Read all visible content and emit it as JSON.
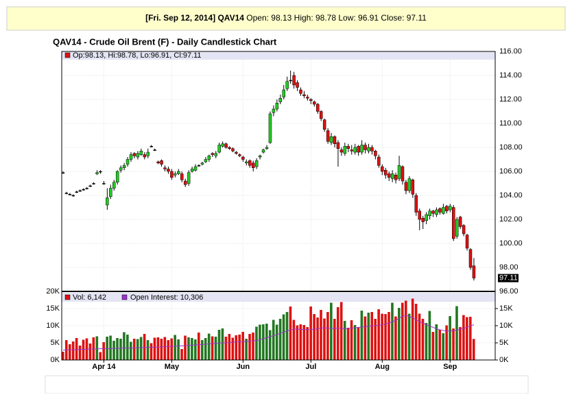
{
  "header": {
    "symbol_date": "[Fri. Sep 12, 2014] QAV14",
    "quote": "Open: 98.13 High: 98.78 Low: 96.91 Close: 97.11"
  },
  "chart_data": {
    "type": "candlestick",
    "title": "QAV14 - Crude Oil Brent (F) - Daily Candlestick Chart",
    "legend": "Op:98.13, Hi:98.78, Lo:96.91, Cl:97.11",
    "last_price_label": "97.11",
    "up_color": "#22cc22",
    "down_color": "#dd1111",
    "categories": [
      null,
      null,
      null,
      null,
      null,
      null,
      null,
      null,
      null,
      null,
      null,
      null,
      "Apr 14",
      null,
      null,
      null,
      null,
      null,
      null,
      null,
      null,
      null,
      null,
      null,
      null,
      null,
      null,
      null,
      null,
      null,
      null,
      null,
      "May",
      null,
      null,
      null,
      null,
      null,
      null,
      null,
      null,
      null,
      null,
      null,
      null,
      null,
      null,
      null,
      null,
      null,
      null,
      null,
      null,
      "Jun",
      null,
      null,
      null,
      null,
      null,
      null,
      null,
      null,
      null,
      null,
      null,
      null,
      null,
      null,
      null,
      null,
      null,
      null,
      null,
      "Jul",
      null,
      null,
      null,
      null,
      null,
      null,
      null,
      null,
      null,
      null,
      null,
      null,
      null,
      null,
      null,
      null,
      null,
      null,
      null,
      null,
      "Aug",
      null,
      null,
      null,
      null,
      null,
      null,
      null,
      null,
      null,
      null,
      null,
      null,
      null,
      null,
      null,
      null,
      null,
      null,
      null,
      "Sep",
      null,
      null,
      null,
      null,
      null,
      null,
      null
    ],
    "open": [
      105.9,
      104.2,
      104.1,
      104.0,
      104.3,
      104.4,
      104.5,
      104.6,
      104.8,
      105.0,
      105.8,
      106.0,
      105.0,
      103.2,
      103.9,
      104.6,
      105.1,
      106.1,
      106.3,
      106.6,
      107.0,
      107.5,
      107.2,
      107.4,
      107.4,
      107.3,
      108.1,
      107.8,
      106.8,
      106.9,
      106.3,
      106.2,
      106.0,
      105.7,
      105.8,
      105.8,
      105.2,
      105.0,
      106.0,
      106.1,
      106.5,
      106.6,
      106.8,
      107.0,
      107.5,
      107.3,
      107.6,
      108.1,
      108.3,
      108.0,
      107.9,
      107.6,
      107.4,
      107.2,
      106.7,
      106.9,
      106.7,
      106.4,
      107.2,
      107.6,
      107.9,
      108.4,
      110.9,
      111.2,
      111.8,
      112.2,
      112.9,
      113.6,
      114.0,
      113.4,
      112.8,
      112.4,
      112.2,
      112.0,
      111.8,
      111.6,
      111.0,
      110.3,
      109.4,
      108.4,
      108.9,
      108.4,
      107.8,
      107.5,
      108.1,
      107.8,
      107.6,
      108.1,
      107.6,
      108.2,
      107.7,
      108.0,
      107.7,
      107.2,
      106.4,
      106.1,
      105.8,
      105.4,
      105.7,
      105.4,
      106.4,
      105.1,
      104.4,
      105.3,
      104.0,
      102.7,
      102.1,
      101.9,
      102.3,
      102.7,
      102.4,
      102.9,
      102.5,
      103.1,
      102.8,
      103.0,
      100.6,
      102.2,
      101.5,
      100.7,
      99.5,
      98.13
    ],
    "high": [
      106.0,
      104.3,
      104.2,
      104.1,
      104.4,
      104.5,
      104.6,
      104.7,
      104.9,
      105.1,
      106.1,
      106.1,
      105.2,
      104.6,
      104.9,
      105.3,
      106.1,
      106.5,
      106.7,
      107.2,
      107.6,
      107.6,
      107.7,
      107.9,
      107.6,
      107.9,
      108.2,
      107.9,
      106.9,
      107.0,
      106.5,
      106.4,
      106.2,
      106.0,
      106.2,
      106.0,
      105.4,
      106.1,
      106.4,
      106.6,
      106.6,
      106.8,
      107.2,
      107.4,
      107.6,
      107.7,
      108.4,
      108.5,
      108.4,
      108.1,
      108.0,
      107.7,
      107.5,
      107.3,
      107.0,
      107.0,
      106.9,
      107.1,
      107.4,
      107.9,
      108.2,
      111.0,
      111.5,
      112.0,
      112.4,
      113.2,
      113.9,
      114.4,
      114.3,
      113.6,
      113.0,
      112.7,
      112.4,
      112.1,
      111.9,
      111.7,
      111.1,
      110.4,
      109.6,
      109.2,
      109.0,
      108.6,
      108.0,
      108.4,
      108.3,
      108.2,
      108.3,
      108.2,
      108.6,
      108.4,
      108.3,
      108.2,
      107.8,
      107.4,
      106.6,
      106.3,
      106.0,
      106.1,
      105.9,
      107.3,
      106.5,
      105.3,
      105.6,
      105.4,
      104.2,
      102.9,
      102.3,
      102.6,
      102.9,
      102.8,
      103.0,
      103.0,
      103.3,
      103.2,
      103.3,
      103.2,
      102.2,
      102.3,
      101.6,
      100.8,
      99.6,
      98.78
    ],
    "low": [
      105.8,
      104.1,
      104.0,
      103.9,
      104.2,
      104.3,
      104.4,
      104.5,
      104.7,
      104.9,
      105.7,
      105.8,
      104.9,
      102.8,
      103.7,
      104.4,
      104.9,
      105.9,
      106.1,
      106.4,
      106.8,
      107.1,
      107.0,
      107.3,
      107.0,
      107.1,
      108.0,
      107.7,
      106.6,
      106.4,
      106.0,
      105.8,
      105.3,
      105.5,
      105.7,
      105.1,
      104.7,
      104.8,
      105.9,
      106.0,
      106.4,
      106.5,
      106.7,
      106.8,
      107.2,
      107.1,
      107.5,
      108.0,
      107.9,
      107.8,
      107.6,
      107.4,
      107.2,
      106.8,
      106.5,
      106.3,
      106.0,
      106.2,
      107.0,
      107.5,
      107.8,
      108.3,
      110.6,
      111.0,
      111.6,
      112.0,
      112.7,
      113.3,
      112.9,
      112.7,
      112.3,
      112.1,
      111.9,
      111.6,
      111.4,
      110.8,
      110.2,
      109.3,
      108.3,
      108.2,
      108.0,
      106.4,
      107.3,
      107.3,
      107.6,
      107.4,
      107.4,
      107.3,
      107.4,
      107.5,
      107.5,
      107.4,
      107.0,
      106.3,
      105.7,
      105.4,
      105.2,
      105.1,
      105.0,
      105.2,
      104.9,
      104.1,
      104.2,
      103.8,
      102.3,
      101.1,
      101.2,
      101.6,
      102.0,
      102.2,
      102.2,
      102.4,
      102.4,
      102.5,
      102.6,
      100.2,
      100.4,
      101.2,
      100.6,
      99.4,
      97.8,
      96.91
    ],
    "close": [
      105.9,
      104.2,
      104.1,
      104.0,
      104.3,
      104.4,
      104.5,
      104.6,
      104.8,
      105.0,
      105.9,
      106.0,
      105.0,
      103.8,
      104.6,
      105.1,
      106.0,
      106.3,
      106.5,
      107.0,
      107.4,
      107.3,
      107.5,
      107.7,
      107.2,
      107.6,
      108.1,
      107.8,
      106.7,
      106.6,
      106.2,
      106.0,
      105.5,
      105.8,
      106.0,
      105.3,
      104.9,
      105.9,
      106.2,
      106.4,
      106.5,
      106.7,
      107.0,
      107.3,
      107.4,
      107.5,
      108.2,
      108.3,
      108.0,
      107.9,
      107.7,
      107.5,
      107.3,
      107.0,
      106.8,
      106.5,
      106.3,
      106.9,
      107.3,
      107.8,
      108.0,
      110.8,
      111.2,
      111.7,
      112.1,
      112.8,
      113.5,
      113.6,
      113.2,
      113.0,
      112.5,
      112.3,
      112.1,
      111.9,
      111.6,
      111.0,
      110.4,
      109.5,
      108.5,
      108.9,
      108.3,
      107.9,
      107.6,
      108.1,
      107.9,
      107.7,
      108.0,
      107.6,
      108.2,
      107.8,
      108.0,
      107.7,
      107.3,
      106.5,
      106.0,
      105.7,
      105.5,
      105.8,
      105.3,
      106.5,
      105.2,
      104.4,
      105.4,
      104.1,
      102.6,
      102.0,
      101.8,
      102.4,
      102.7,
      102.5,
      102.8,
      102.6,
      103.0,
      102.7,
      103.1,
      100.4,
      102.0,
      101.4,
      100.8,
      99.6,
      98.0,
      97.11
    ],
    "ylim": [
      96,
      116
    ],
    "yticks": [
      {
        "value": 96,
        "label": "96.00"
      },
      {
        "value": 98,
        "label": "98.00"
      },
      {
        "value": 100,
        "label": "100.00"
      },
      {
        "value": 102,
        "label": "102.00"
      },
      {
        "value": 104,
        "label": "104.00"
      },
      {
        "value": 106,
        "label": "106.00"
      },
      {
        "value": 108,
        "label": "108.00"
      },
      {
        "value": 110,
        "label": "110.00"
      },
      {
        "value": 112,
        "label": "112.00"
      },
      {
        "value": 114,
        "label": "114.00"
      },
      {
        "value": 116,
        "label": "116.00"
      }
    ],
    "volume": {
      "name": "Vol: 6,142",
      "color": "#dd1111",
      "values": [
        2400,
        5800,
        4600,
        5400,
        6400,
        4200,
        5900,
        6300,
        4800,
        6600,
        6900,
        2300,
        5200,
        6800,
        7100,
        5600,
        6400,
        6200,
        8100,
        7400,
        5300,
        6200,
        6100,
        6700,
        7600,
        5800,
        4900,
        6500,
        6600,
        6200,
        6700,
        5800,
        6300,
        7300,
        6000,
        3200,
        7100,
        6600,
        6400,
        6000,
        8000,
        5800,
        6400,
        7700,
        6900,
        6800,
        8800,
        9200,
        6800,
        7600,
        6500,
        7200,
        7400,
        8200,
        6200,
        7600,
        8000,
        9700,
        10300,
        10400,
        10600,
        8700,
        11700,
        10300,
        12000,
        13300,
        14000,
        15600,
        11700,
        10100,
        10400,
        10200,
        9600,
        15600,
        13400,
        12400,
        14600,
        12100,
        14000,
        16700,
        12000,
        15400,
        16900,
        11400,
        9400,
        11600,
        10200,
        9600,
        14400,
        12700,
        13800,
        14000,
        12000,
        14800,
        13500,
        13400,
        14000,
        16700,
        12700,
        15200,
        16700,
        17300,
        13500,
        17900,
        16400,
        13500,
        12000,
        10800,
        14300,
        8200,
        10400,
        8800,
        7800,
        10100,
        12800,
        9200,
        15700,
        9600,
        13100,
        12500,
        12600,
        6142
      ]
    },
    "open_interest": {
      "name": "Open Interest: 10,306",
      "color": "#9933cc",
      "axis": "y2",
      "values": [
        2900,
        2900,
        3000,
        3000,
        3000,
        3100,
        3100,
        3100,
        3200,
        3200,
        3200,
        3300,
        3300,
        3300,
        3300,
        3400,
        3400,
        3400,
        3500,
        3500,
        3500,
        3500,
        3600,
        3600,
        3600,
        3700,
        3700,
        3700,
        3800,
        3800,
        3900,
        3900,
        4000,
        4000,
        4100,
        4100,
        4200,
        4300,
        4300,
        4400,
        4500,
        4500,
        4600,
        4700,
        4800,
        4800,
        4900,
        5000,
        5000,
        5100,
        5200,
        5300,
        5300,
        5400,
        5400,
        5500,
        5600,
        5700,
        5900,
        6200,
        6500,
        6800,
        7100,
        7400,
        7800,
        8100,
        8500,
        8800,
        9000,
        9000,
        8900,
        8900,
        8800,
        8900,
        9000,
        9100,
        9300,
        9400,
        9300,
        9200,
        9200,
        9300,
        9200,
        9100,
        9200,
        9300,
        9400,
        9500,
        9600,
        9700,
        9800,
        10000,
        10000,
        10100,
        10300,
        10500,
        10800,
        11100,
        11600,
        12200,
        12700,
        13000,
        12700,
        12300,
        11700,
        11200,
        10700,
        10300,
        9900,
        9500,
        9100,
        8800,
        8600,
        8500,
        8400,
        8600,
        8700,
        9000,
        9200,
        9600,
        9900,
        10306
      ]
    },
    "vol_ylim": [
      0,
      20000
    ],
    "vol_yticks": [
      {
        "value": 0,
        "label": "0K"
      },
      {
        "value": 5000,
        "label": "5K"
      },
      {
        "value": 10000,
        "label": "10K"
      },
      {
        "value": 15000,
        "label": "15K"
      },
      {
        "value": 20000,
        "label": "20K"
      }
    ],
    "y2lim": [
      0,
      20000
    ],
    "y2ticks": [
      {
        "value": 0,
        "label": "0K"
      },
      {
        "value": 5000,
        "label": "5K"
      },
      {
        "value": 10000,
        "label": "10K"
      },
      {
        "value": 15000,
        "label": "15K"
      }
    ],
    "grid": true
  }
}
